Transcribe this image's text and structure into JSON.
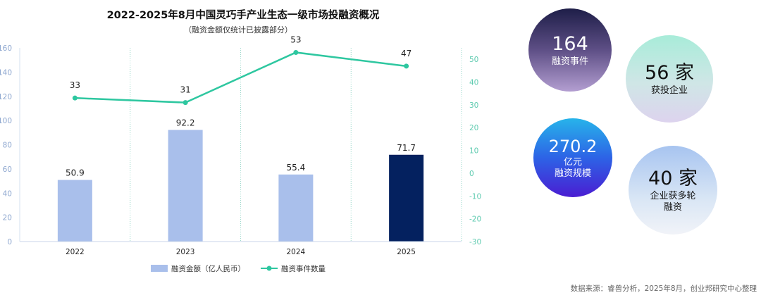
{
  "chart_data": {
    "type": "bar+line",
    "title": "2022-2025年8月中国灵巧手产业生态一级市场投融资概况",
    "subtitle": "（融资金额仅统计已披露部分）",
    "categories": [
      "2022",
      "2023",
      "2024",
      "2025"
    ],
    "series": [
      {
        "name": "融资金额（亿人民币）",
        "type": "bar",
        "axis": "left",
        "values": [
          50.9,
          92.2,
          55.4,
          71.7
        ],
        "colors": [
          "#a9bfeb",
          "#a9bfeb",
          "#a9bfeb",
          "#04215f"
        ]
      },
      {
        "name": "融资事件数量",
        "type": "line",
        "axis": "right",
        "values": [
          33,
          31,
          53,
          47
        ],
        "color": "#2ec7a0"
      }
    ],
    "y_left": {
      "range": [
        0,
        160
      ],
      "ticks": [
        0,
        20,
        40,
        60,
        80,
        100,
        120,
        140,
        160
      ]
    },
    "y_right": {
      "range": [
        -30,
        55
      ],
      "ticks": [
        -30,
        -20,
        -10,
        0,
        10,
        20,
        30,
        40,
        50
      ]
    },
    "legend_position": "bottom-center"
  },
  "stats": [
    {
      "value": "164",
      "label": "融资事件"
    },
    {
      "value": "56 家",
      "label": "获投企业"
    },
    {
      "value": "270.2",
      "unit": "亿元",
      "label": "融资规模"
    },
    {
      "value": "40 家",
      "label_line1": "企业获多轮",
      "label_line2": "融资"
    }
  ],
  "source": "数据来源：睿兽分析，2025年8月，创业邦研究中心整理"
}
